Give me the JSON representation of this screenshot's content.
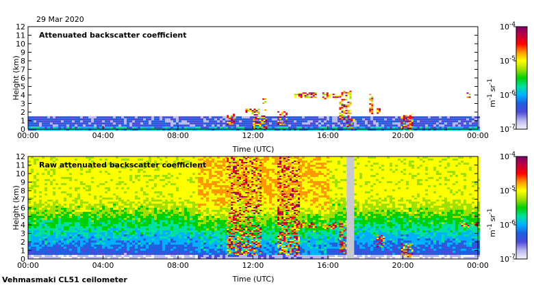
{
  "date": "29 Mar 2020",
  "footer": "Vehmasmaki CL51 ceilometer",
  "colorbar": {
    "ticks": [
      "10",
      "10",
      "10",
      "10"
    ],
    "exponents": [
      "-7",
      "-6",
      "-5",
      "-4"
    ],
    "unit_m": "m",
    "unit_m_exp": "-1",
    "unit_sr": "sr",
    "unit_sr_exp": "-1",
    "colors": [
      "#f4f4fa",
      "#b8b8f0",
      "#4b4bd8",
      "#1f5fe0",
      "#00b0ff",
      "#00e0a0",
      "#00d000",
      "#a0e000",
      "#ffff00",
      "#ff9900",
      "#ff0000",
      "#c00040",
      "#7a006a"
    ]
  },
  "chart_data": [
    {
      "type": "heatmap",
      "title": "Attenuated backscatter coefficient",
      "xlabel": "Time (UTC)",
      "ylabel": "Height (km)",
      "x_ticks": [
        "00:00",
        "04:00",
        "08:00",
        "12:00",
        "16:00",
        "20:00",
        "00:00"
      ],
      "y_ticks": [
        "0",
        "1",
        "2",
        "3",
        "4",
        "5",
        "6",
        "7",
        "8",
        "9",
        "10",
        "11",
        "12"
      ],
      "ylim": [
        0,
        12
      ],
      "xlim_hours": [
        0,
        24
      ],
      "color_scale": "log",
      "clim": [
        1e-07,
        0.0001
      ],
      "boundary_layer_top_km": 1.5,
      "features": [
        {
          "start_hour": 10.6,
          "end_hour": 11.0,
          "base_km": 0.6,
          "top_km": 1.8
        },
        {
          "start_hour": 11.0,
          "end_hour": 11.1,
          "base_km": 3.3,
          "top_km": 3.6
        },
        {
          "start_hour": 11.6,
          "end_hour": 12.3,
          "base_km": 1.6,
          "top_km": 2.4
        },
        {
          "start_hour": 12.0,
          "end_hour": 12.7,
          "base_km": 0.0,
          "top_km": 1.6
        },
        {
          "start_hour": 12.5,
          "end_hour": 12.7,
          "base_km": 2.2,
          "top_km": 3.6
        },
        {
          "start_hour": 13.3,
          "end_hour": 13.8,
          "base_km": 0.6,
          "top_km": 2.1
        },
        {
          "start_hour": 14.2,
          "end_hour": 15.3,
          "base_km": 3.8,
          "top_km": 4.3
        },
        {
          "start_hour": 15.7,
          "end_hour": 16.5,
          "base_km": 3.6,
          "top_km": 4.3
        },
        {
          "start_hour": 16.6,
          "end_hour": 17.2,
          "base_km": 1.2,
          "top_km": 4.5
        },
        {
          "start_hour": 17.0,
          "end_hour": 17.4,
          "base_km": 0.0,
          "top_km": 1.2
        },
        {
          "start_hour": 18.2,
          "end_hour": 18.4,
          "base_km": 1.8,
          "top_km": 4.3
        },
        {
          "start_hour": 18.6,
          "end_hour": 18.8,
          "base_km": 1.8,
          "top_km": 2.6
        },
        {
          "start_hour": 19.9,
          "end_hour": 20.5,
          "base_km": 0.0,
          "top_km": 1.8
        },
        {
          "start_hour": 23.4,
          "end_hour": 23.6,
          "base_km": 3.7,
          "top_km": 4.3
        }
      ]
    },
    {
      "type": "heatmap",
      "title": "Raw attenuated backscatter coefficient",
      "xlabel": "Time (UTC)",
      "ylabel": "Height (km)",
      "x_ticks": [
        "00:00",
        "04:00",
        "08:00",
        "12:00",
        "16:00",
        "20:00",
        "00:00"
      ],
      "y_ticks": [
        "0",
        "1",
        "2",
        "3",
        "4",
        "5",
        "6",
        "7",
        "8",
        "9",
        "10",
        "11",
        "12"
      ],
      "ylim": [
        0,
        12
      ],
      "xlim_hours": [
        0,
        24
      ],
      "color_scale": "log",
      "clim": [
        1e-07,
        0.0001
      ],
      "missing_data_hours": [
        [
          17.0,
          17.4
        ]
      ],
      "features": [
        {
          "start_hour": 10.6,
          "end_hour": 12.4,
          "base_km": 0.5,
          "top_km": 12.0
        },
        {
          "start_hour": 13.3,
          "end_hour": 14.5,
          "base_km": 0.5,
          "top_km": 12.0
        },
        {
          "start_hour": 14.2,
          "end_hour": 15.3,
          "base_km": 3.8,
          "top_km": 4.3
        },
        {
          "start_hour": 15.7,
          "end_hour": 16.5,
          "base_km": 3.6,
          "top_km": 4.3
        },
        {
          "start_hour": 16.6,
          "end_hour": 17.2,
          "base_km": 0.8,
          "top_km": 4.5
        },
        {
          "start_hour": 18.6,
          "end_hour": 19.0,
          "base_km": 1.4,
          "top_km": 2.8
        },
        {
          "start_hour": 19.9,
          "end_hour": 20.5,
          "base_km": 0.3,
          "top_km": 1.8
        },
        {
          "start_hour": 23.0,
          "end_hour": 24.0,
          "base_km": 3.7,
          "top_km": 4.3
        }
      ]
    }
  ]
}
